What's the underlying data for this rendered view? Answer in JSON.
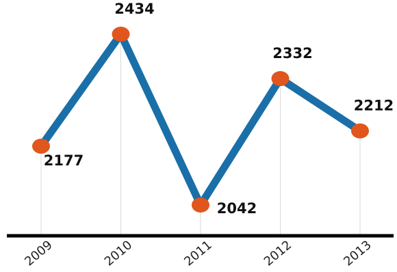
{
  "chart_data": {
    "type": "line",
    "categories": [
      "2009",
      "2010",
      "2011",
      "2012",
      "2013"
    ],
    "values": [
      2177,
      2434,
      2042,
      2332,
      2212
    ],
    "data_labels": [
      "2177",
      "2434",
      "2042",
      "2332",
      "2212"
    ],
    "ylim": [
      1950,
      2460
    ],
    "grid": "vertical",
    "legend": "none",
    "colors": {
      "line": "#1a6fa8",
      "marker": "#e0561c",
      "axis": "#000000",
      "grid": "#d9d9d9"
    }
  }
}
